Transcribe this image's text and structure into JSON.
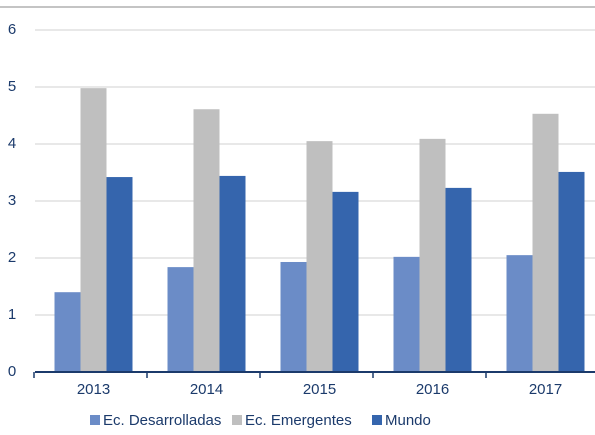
{
  "chart_data": {
    "type": "bar",
    "categories": [
      "2013",
      "2014",
      "2015",
      "2016",
      "2017"
    ],
    "series": [
      {
        "name": "Ec. Desarrolladas",
        "color": "#6b8cc7",
        "values": [
          1.4,
          1.84,
          1.93,
          2.02,
          2.05
        ]
      },
      {
        "name": "Ec. Emergentes",
        "color": "#bfbfbf",
        "values": [
          4.98,
          4.61,
          4.05,
          4.09,
          4.53
        ]
      },
      {
        "name": "Mundo",
        "color": "#3565ad",
        "values": [
          3.42,
          3.44,
          3.16,
          3.23,
          3.51
        ]
      }
    ],
    "ylim": [
      0,
      6
    ],
    "yticks": [
      0,
      1,
      2,
      3,
      4,
      5,
      6
    ],
    "grid": true,
    "legend": "bottom"
  }
}
